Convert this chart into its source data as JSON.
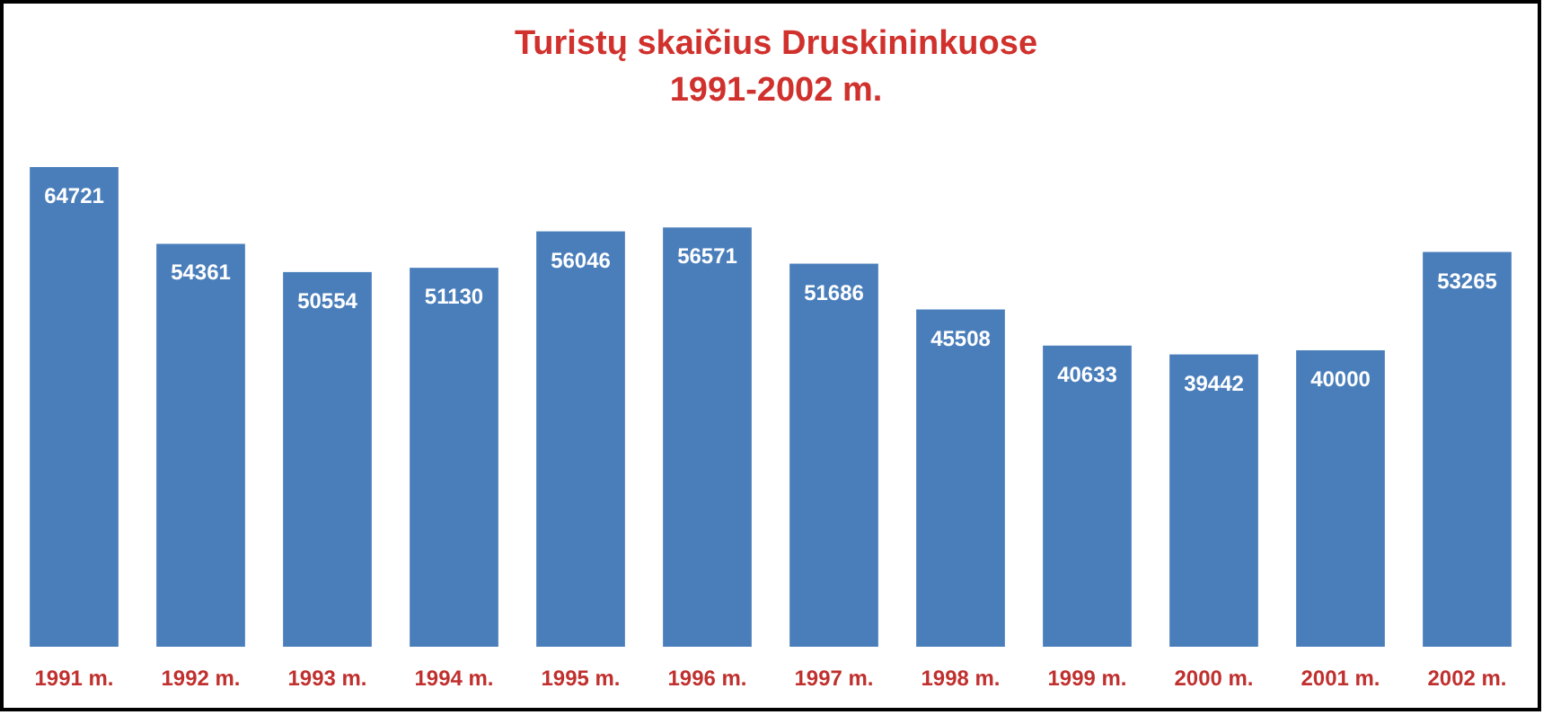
{
  "chart_data": {
    "type": "bar",
    "title": "Turistų skaičius Druskininkuose",
    "subtitle": "1991-2002 m.",
    "categories": [
      "1991 m.",
      "1992 m.",
      "1993 m.",
      "1994 m.",
      "1995 m.",
      "1996 m.",
      "1997 m.",
      "1998 m.",
      "1999 m.",
      "2000 m.",
      "2001 m.",
      "2002 m."
    ],
    "values": [
      64721,
      54361,
      50554,
      51130,
      56046,
      56571,
      51686,
      45508,
      40633,
      39442,
      40000,
      53265
    ],
    "color": "#4a7ebb",
    "data_labels": true
  }
}
